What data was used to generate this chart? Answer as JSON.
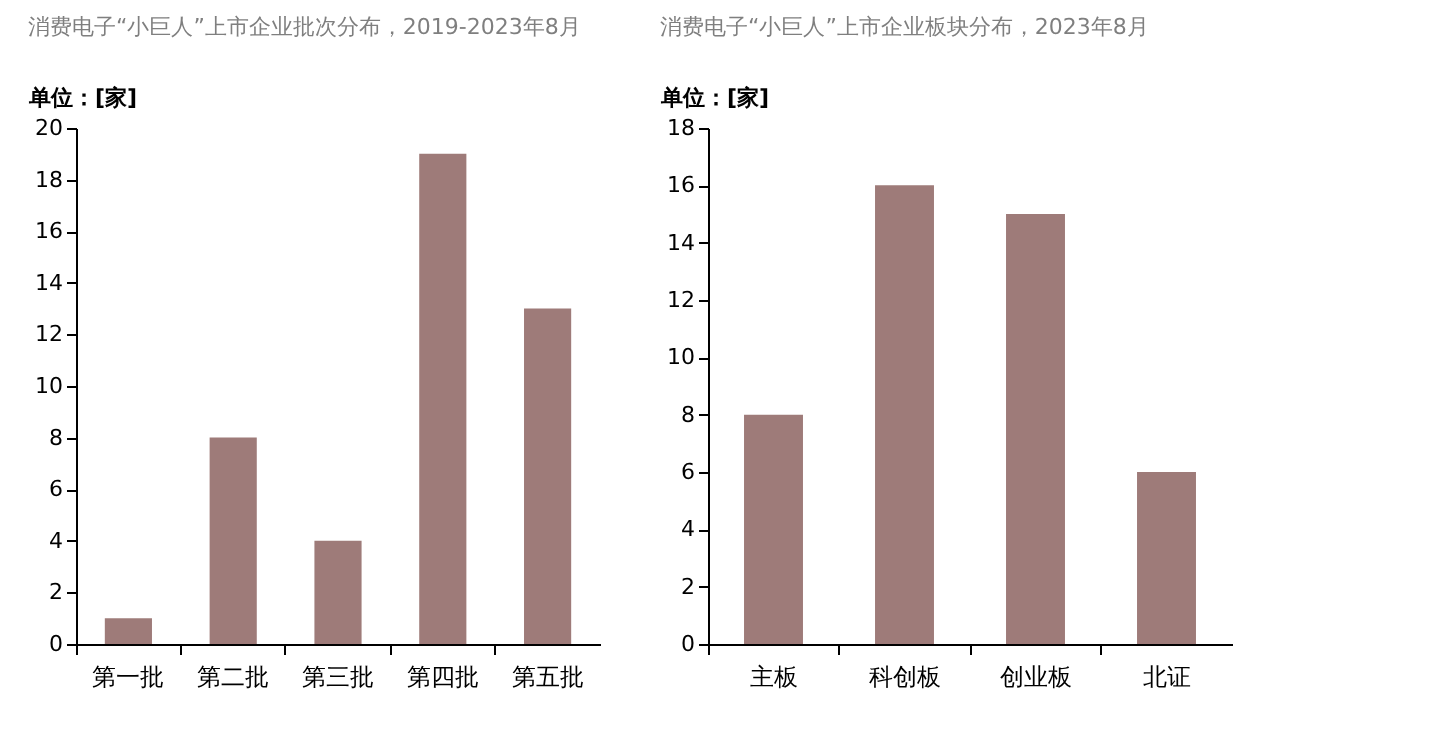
{
  "chart_data": [
    {
      "type": "bar",
      "title": "消费电子“小巨人”上市企业批次分布，2019-2023年8月",
      "ylabel": "单位：[家]",
      "categories": [
        "第一批",
        "第二批",
        "第三批",
        "第四批",
        "第五批"
      ],
      "values": [
        1,
        8,
        4,
        19,
        13
      ],
      "color": "#9e7b79",
      "ylim": [
        0,
        20
      ],
      "yticks": [
        0,
        2,
        4,
        6,
        8,
        10,
        12,
        14,
        16,
        18,
        20
      ],
      "grid": false
    },
    {
      "type": "bar",
      "title": "消费电子“小巨人”上市企业板块分布，2023年8月",
      "ylabel": "单位：[家]",
      "categories": [
        "主板",
        "科创板",
        "创业板",
        "北证"
      ],
      "values": [
        8,
        16,
        15,
        6
      ],
      "color": "#9e7b79",
      "ylim": [
        0,
        18
      ],
      "yticks": [
        0,
        2,
        4,
        6,
        8,
        10,
        12,
        14,
        16,
        18
      ],
      "grid": false
    }
  ]
}
